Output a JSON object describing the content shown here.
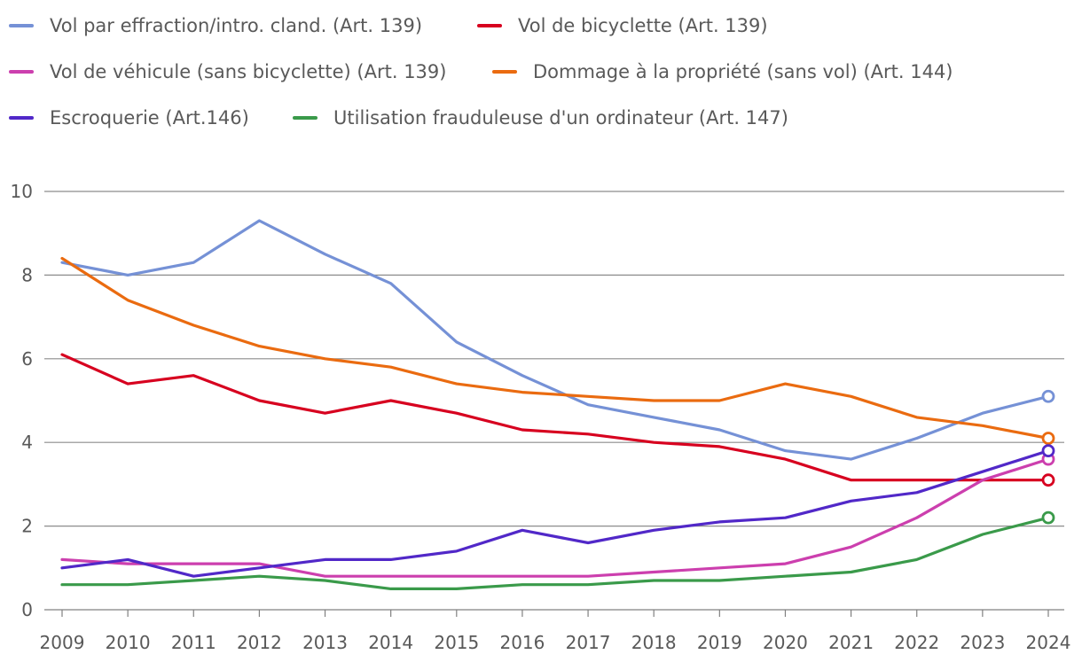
{
  "chart_data": {
    "type": "line",
    "title": "",
    "xlabel": "",
    "ylabel": "",
    "ylim": [
      0,
      10
    ],
    "yticks": [
      0,
      2,
      4,
      6,
      8,
      10
    ],
    "grid": true,
    "legend_position": "top",
    "x": [
      "2009",
      "2010",
      "2011",
      "2012",
      "2013",
      "2014",
      "2015",
      "2016",
      "2017",
      "2018",
      "2019",
      "2020",
      "2021",
      "2022",
      "2023",
      "2024"
    ],
    "series": [
      {
        "name": "Vol par effraction/intro. cland. (Art. 139)",
        "color": "#7591d6",
        "values": [
          8.3,
          8.0,
          8.3,
          9.3,
          8.5,
          7.8,
          6.4,
          5.6,
          4.9,
          4.6,
          4.3,
          3.8,
          3.6,
          4.1,
          4.7,
          5.1
        ]
      },
      {
        "name": "Vol de bicyclette (Art. 139)",
        "color": "#d7001f",
        "values": [
          6.1,
          5.4,
          5.6,
          5.0,
          4.7,
          5.0,
          4.7,
          4.3,
          4.2,
          4.0,
          3.9,
          3.6,
          3.1,
          3.1,
          3.1,
          3.1
        ]
      },
      {
        "name": "Vol de véhicule (sans bicyclette) (Art. 139)",
        "color": "#cc3fae",
        "values": [
          1.2,
          1.1,
          1.1,
          1.1,
          0.8,
          0.8,
          0.8,
          0.8,
          0.8,
          0.9,
          1.0,
          1.1,
          1.5,
          2.2,
          3.1,
          3.6
        ]
      },
      {
        "name": "Dommage à la propriété (sans vol) (Art. 144)",
        "color": "#ea6b10",
        "values": [
          8.4,
          7.4,
          6.8,
          6.3,
          6.0,
          5.8,
          5.4,
          5.2,
          5.1,
          5.0,
          5.0,
          5.4,
          5.1,
          4.6,
          4.4,
          4.1
        ]
      },
      {
        "name": "Escroquerie (Art.146)",
        "color": "#5128c8",
        "values": [
          1.0,
          1.2,
          0.8,
          1.0,
          1.2,
          1.2,
          1.4,
          1.9,
          1.6,
          1.9,
          2.1,
          2.2,
          2.6,
          2.8,
          3.3,
          3.8
        ]
      },
      {
        "name": "Utilisation frauduleuse d'un ordinateur (Art. 147)",
        "color": "#3a9a4a",
        "values": [
          0.6,
          0.6,
          0.7,
          0.8,
          0.7,
          0.5,
          0.5,
          0.6,
          0.6,
          0.7,
          0.7,
          0.8,
          0.9,
          1.2,
          1.8,
          2.2
        ]
      }
    ]
  }
}
